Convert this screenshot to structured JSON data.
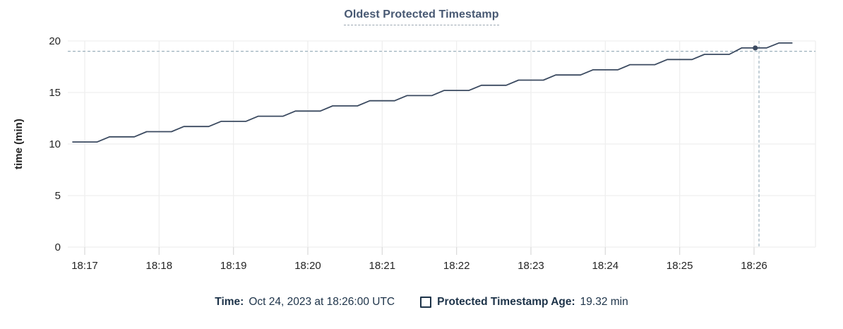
{
  "title": "Oldest Protected Timestamp",
  "chart_data": {
    "type": "line",
    "title": "Oldest Protected Timestamp",
    "xlabel": "",
    "ylabel": "time (min)",
    "ylim": [
      0,
      20
    ],
    "yticks": [
      0,
      5,
      10,
      15,
      20
    ],
    "xticks": [
      "18:17",
      "18:18",
      "18:19",
      "18:20",
      "18:21",
      "18:22",
      "18:23",
      "18:24",
      "18:25",
      "18:26"
    ],
    "x_tick_interval_seconds": 60,
    "grid": true,
    "legend_position": "bottom",
    "series": [
      {
        "name": "Protected Timestamp Age",
        "unit": "min",
        "points": [
          [
            -10,
            10.2
          ],
          [
            10,
            10.2
          ],
          [
            20,
            10.7
          ],
          [
            40,
            10.7
          ],
          [
            50,
            11.2
          ],
          [
            70,
            11.2
          ],
          [
            80,
            11.7
          ],
          [
            100,
            11.7
          ],
          [
            110,
            12.2
          ],
          [
            130,
            12.2
          ],
          [
            140,
            12.7
          ],
          [
            160,
            12.7
          ],
          [
            170,
            13.2
          ],
          [
            190,
            13.2
          ],
          [
            200,
            13.7
          ],
          [
            220,
            13.7
          ],
          [
            230,
            14.2
          ],
          [
            250,
            14.2
          ],
          [
            260,
            14.7
          ],
          [
            280,
            14.7
          ],
          [
            290,
            15.2
          ],
          [
            310,
            15.2
          ],
          [
            320,
            15.7
          ],
          [
            340,
            15.7
          ],
          [
            350,
            16.2
          ],
          [
            370,
            16.2
          ],
          [
            380,
            16.7
          ],
          [
            400,
            16.7
          ],
          [
            410,
            17.2
          ],
          [
            430,
            17.2
          ],
          [
            440,
            17.7
          ],
          [
            460,
            17.7
          ],
          [
            470,
            18.2
          ],
          [
            490,
            18.2
          ],
          [
            500,
            18.7
          ],
          [
            520,
            18.7
          ],
          [
            530,
            19.32
          ],
          [
            550,
            19.32
          ],
          [
            560,
            19.8
          ],
          [
            571,
            19.8
          ]
        ]
      }
    ],
    "crosshair": {
      "x_seconds": 544,
      "y_value": 19.0,
      "point": {
        "x_seconds": 541,
        "value": 19.32
      }
    }
  },
  "legend": {
    "time_label": "Time:",
    "time_value": "Oct 24, 2023 at 18:26:00 UTC",
    "series_label": "Protected Timestamp Age:",
    "series_value": "19.32 min"
  },
  "colors": {
    "line": "#3b4a60",
    "dot": "#3b4a60",
    "grid": "#efefef",
    "tick": "#dcdcdc",
    "crosshair": "#9db1bd",
    "axis_text": "#242424",
    "title_text": "#475872",
    "legend_text": "#1d3349"
  }
}
